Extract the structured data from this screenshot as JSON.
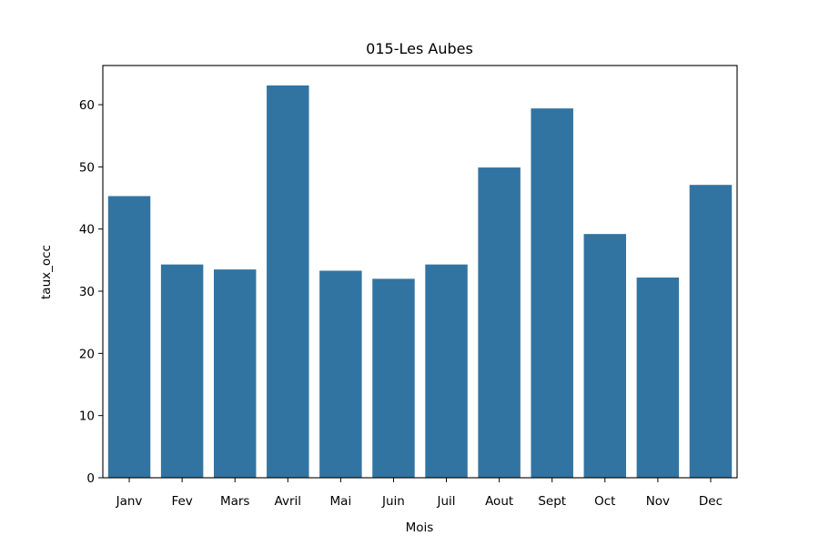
{
  "chart_data": {
    "type": "bar",
    "title": "015-Les Aubes",
    "xlabel": "Mois",
    "ylabel": "taux_occ",
    "categories": [
      "Janv",
      "Fev",
      "Mars",
      "Avril",
      "Mai",
      "Juin",
      "Juil",
      "Aout",
      "Sept",
      "Oct",
      "Nov",
      "Dec"
    ],
    "values": [
      45.3,
      34.3,
      33.5,
      63.1,
      33.3,
      32.0,
      34.3,
      49.9,
      59.4,
      39.2,
      32.2,
      47.1
    ],
    "ylim": [
      0,
      66.3
    ],
    "yticks": [
      0,
      10,
      20,
      30,
      40,
      50,
      60
    ],
    "bar_color": "#3274a1",
    "grid": false,
    "legend": "none"
  }
}
